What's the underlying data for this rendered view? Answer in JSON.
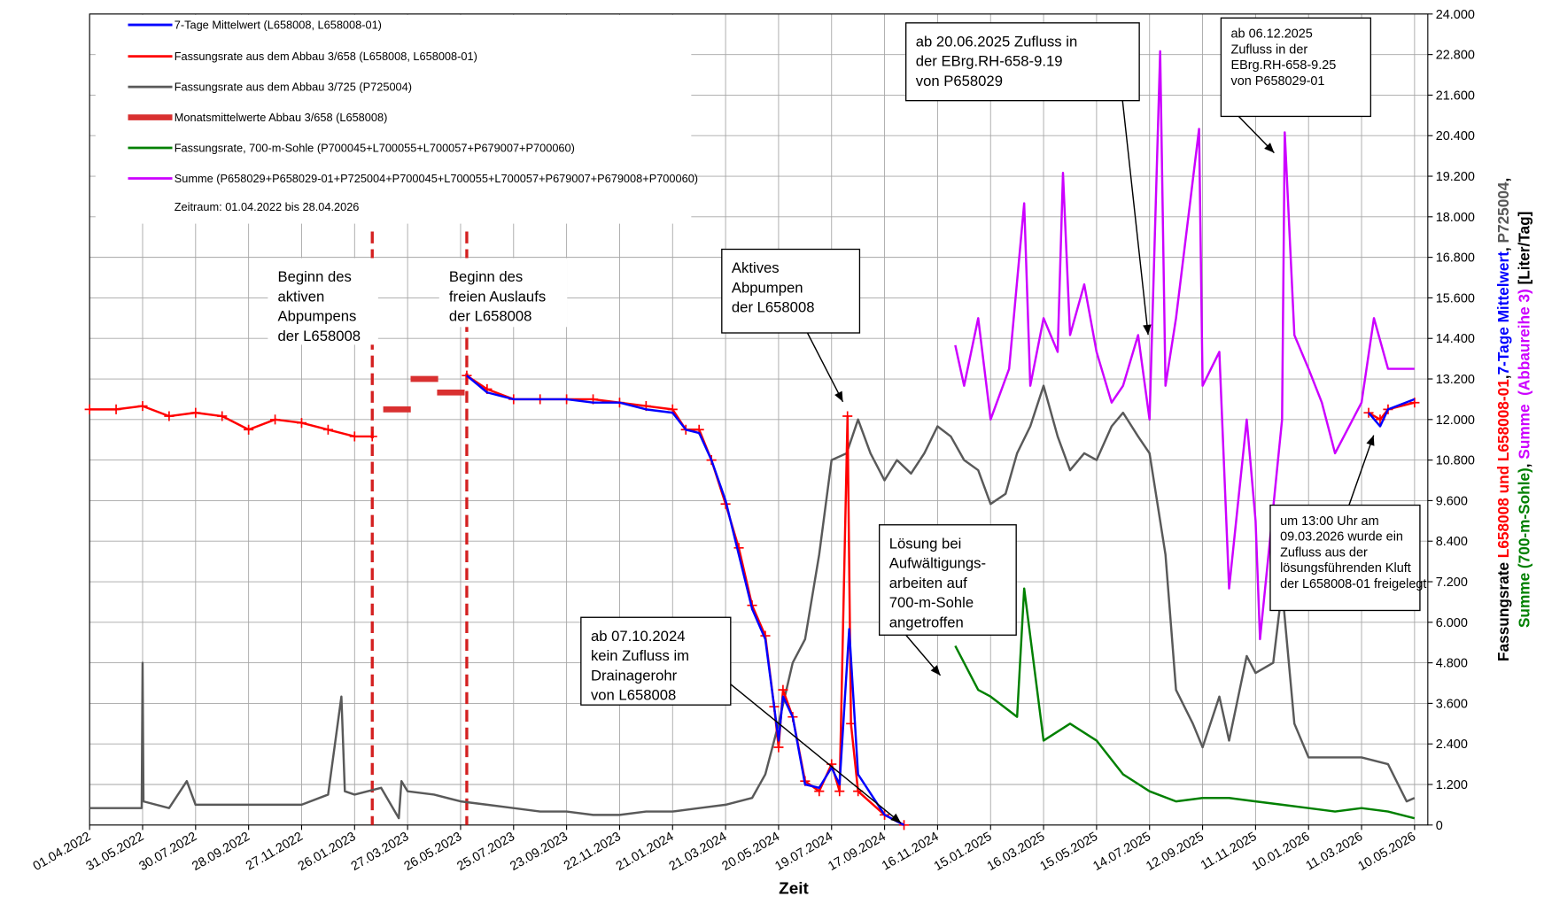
{
  "chart_data": {
    "type": "line",
    "x_label": "Zeit",
    "y_label_lines": [
      [
        {
          "text": "Fassungsrate ",
          "color": "#000000"
        },
        {
          "text": "L658008 und L658008-01",
          "color": "#ff0000"
        },
        {
          "text": ",",
          "color": "#000000"
        },
        {
          "text": "7-Tage Mittelwert",
          "color": "#0000ff"
        },
        {
          "text": ", ",
          "color": "#000000"
        },
        {
          "text": "P725004",
          "color": "#595959"
        },
        {
          "text": ",",
          "color": "#000000"
        }
      ],
      [
        {
          "text": "Summe (700-m-Sohle)",
          "color": "#008000"
        },
        {
          "text": ", ",
          "color": "#000000"
        },
        {
          "text": "Summe  (Abbaureihe 3)",
          "color": "#cc00ff"
        },
        {
          "text": " [Liter/Tag]",
          "color": "#000000"
        }
      ]
    ],
    "xlim": [
      "01.04.2022",
      "25.05.2026"
    ],
    "xticks": [
      "01.04.2022",
      "31.05.2022",
      "30.07.2022",
      "28.09.2022",
      "27.11.2022",
      "26.01.2023",
      "27.03.2023",
      "26.05.2023",
      "25.07.2023",
      "23.09.2023",
      "22.11.2023",
      "21.01.2024",
      "21.03.2024",
      "20.05.2024",
      "19.07.2024",
      "17.09.2024",
      "16.11.2024",
      "15.01.2025",
      "16.03.2025",
      "15.05.2025",
      "14.07.2025",
      "12.09.2025",
      "11.11.2025",
      "10.01.2026",
      "11.03.2026",
      "10.05.2026"
    ],
    "ylim": [
      0,
      24000
    ],
    "yticks": [
      0,
      {
        "value": 1200,
        "label": "1.200"
      },
      {
        "value": 2400,
        "label": "2.400"
      },
      {
        "value": 3600,
        "label": "3.600"
      },
      {
        "value": 4800,
        "label": "4.800"
      },
      {
        "value": 6000,
        "label": "6.000"
      },
      {
        "value": 7200,
        "label": "7.200"
      },
      {
        "value": 8400,
        "label": "8.400"
      },
      {
        "value": 9600,
        "label": "9.600"
      },
      {
        "value": 10800,
        "label": "10.800"
      },
      {
        "value": 12000,
        "label": "12.000"
      },
      {
        "value": 13200,
        "label": "13.200"
      },
      {
        "value": 14400,
        "label": "14.400"
      },
      {
        "value": 15600,
        "label": "15.600"
      },
      {
        "value": 16800,
        "label": "16.800"
      },
      {
        "value": 18000,
        "label": "18.000"
      },
      {
        "value": 19200,
        "label": "19.200"
      },
      {
        "value": 20400,
        "label": "20.400"
      },
      {
        "value": 21600,
        "label": "21.600"
      },
      {
        "value": 22800,
        "label": "22.800"
      },
      {
        "value": 24000,
        "label": "24.000"
      }
    ],
    "y_axis_side": "right",
    "grid": true,
    "legend_position": "upper-left",
    "legend_note": "Zeitraum: 01.04.2022 bis  28.04.2026",
    "vlines": {
      "color": "#d42020",
      "x": [
        "15.02.2023",
        "02.06.2023"
      ]
    },
    "series": [
      {
        "name": "7-Tage Mittelwert (L658008, L658008-01)",
        "color": "#0000ff",
        "x": [
          "02.06.2023",
          "25.06.2023",
          "25.07.2023",
          "24.08.2023",
          "23.09.2023",
          "23.10.2023",
          "22.11.2023",
          "22.12.2023",
          "21.01.2024",
          "05.02.2024",
          "20.02.2024",
          "05.03.2024",
          "21.03.2024",
          "05.04.2024",
          "20.04.2024",
          "05.05.2024",
          "20.05.2024",
          "25.05.2024",
          "05.06.2024",
          "19.06.2024",
          "05.07.2024",
          "19.07.2024",
          "28.07.2024",
          "08.08.2024",
          "18.08.2024",
          "17.09.2024",
          "09.10.2024",
          "16.11.2024",
          "19.03.2026",
          "01.04.2026",
          "10.04.2026",
          "10.05.2026"
        ],
        "values": [
          13300,
          12800,
          12600,
          12600,
          12600,
          12500,
          12500,
          12300,
          12200,
          11700,
          11600,
          10800,
          9600,
          8000,
          6400,
          5500,
          2500,
          3800,
          3200,
          1200,
          1100,
          1700,
          1200,
          5800,
          1500,
          300,
          0,
          null,
          12200,
          11800,
          12300,
          12600
        ]
      },
      {
        "name": "Fassungsrate aus dem Abbau 3/658 (L658008, L658008-01)",
        "color": "#ff0000",
        "marker": "plus",
        "x": [
          "01.04.2022",
          "01.05.2022",
          "31.05.2022",
          "30.06.2022",
          "30.07.2022",
          "29.08.2022",
          "28.09.2022",
          "28.10.2022",
          "27.11.2022",
          "27.12.2022",
          "26.01.2023",
          "15.02.2023",
          "25.02.2023",
          "02.06.2023",
          "25.06.2023",
          "25.07.2023",
          "24.08.2023",
          "23.09.2023",
          "23.10.2023",
          "22.11.2023",
          "22.12.2023",
          "21.01.2024",
          "05.02.2024",
          "20.02.2024",
          "05.03.2024",
          "21.03.2024",
          "05.04.2024",
          "20.04.2024",
          "05.05.2024",
          "15.05.2024",
          "20.05.2024",
          "25.05.2024",
          "05.06.2024",
          "19.06.2024",
          "05.07.2024",
          "19.07.2024",
          "28.07.2024",
          "06.08.2024",
          "10.08.2024",
          "18.08.2024",
          "17.09.2024",
          "09.10.2024",
          "16.11.2024",
          "19.03.2026",
          "01.04.2026",
          "10.04.2026",
          "10.05.2026"
        ],
        "values": [
          12300,
          12300,
          12400,
          12100,
          12200,
          12100,
          11700,
          12000,
          11900,
          11700,
          11500,
          11500,
          null,
          13300,
          12900,
          12600,
          12600,
          12600,
          12600,
          12500,
          12400,
          12300,
          11700,
          11700,
          10800,
          9500,
          8200,
          6500,
          5600,
          3500,
          2300,
          4000,
          3200,
          1300,
          1000,
          1800,
          1000,
          12100,
          3000,
          1000,
          300,
          0,
          null,
          12200,
          12000,
          12300,
          12500
        ]
      },
      {
        "name": "Fassungsrate aus dem Abbau 3/725 (P725004)",
        "color": "#595959",
        "x": [
          "01.04.2022",
          "30.05.2022",
          "31.05.2022",
          "01.06.2022",
          "30.06.2022",
          "20.07.2022",
          "30.07.2022",
          "28.09.2022",
          "27.11.2022",
          "27.12.2022",
          "11.01.2023",
          "15.01.2023",
          "26.01.2023",
          "25.02.2023",
          "17.03.2023",
          "20.03.2023",
          "27.03.2023",
          "26.04.2023",
          "26.05.2023",
          "25.06.2023",
          "25.07.2023",
          "24.08.2023",
          "23.09.2023",
          "23.10.2023",
          "22.11.2023",
          "22.12.2023",
          "21.01.2024",
          "20.02.2024",
          "21.03.2024",
          "20.04.2024",
          "05.05.2024",
          "20.05.2024",
          "05.06.2024",
          "19.06.2024",
          "05.07.2024",
          "19.07.2024",
          "05.08.2024",
          "18.08.2024",
          "01.09.2024",
          "17.09.2024",
          "01.10.2024",
          "17.10.2024",
          "01.11.2024",
          "16.11.2024",
          "01.12.2024",
          "16.12.2024",
          "01.01.2025",
          "15.01.2025",
          "01.02.2025",
          "14.02.2025",
          "01.03.2025",
          "16.03.2025",
          "01.04.2025",
          "15.04.2025",
          "01.05.2025",
          "15.05.2025",
          "01.06.2025",
          "14.06.2025",
          "01.07.2025",
          "14.07.2025",
          "01.08.2025",
          "13.08.2025",
          "01.09.2025",
          "12.09.2025",
          "01.10.2025",
          "12.10.2025",
          "01.11.2025",
          "11.11.2025",
          "01.12.2025",
          "11.12.2025",
          "25.12.2025",
          "10.01.2026",
          "09.02.2026",
          "11.03.2026",
          "10.04.2026",
          "01.05.2026",
          "10.05.2026"
        ],
        "values": [
          500,
          500,
          4800,
          700,
          500,
          1300,
          600,
          600,
          600,
          900,
          3800,
          1000,
          900,
          1100,
          200,
          1300,
          1000,
          900,
          700,
          600,
          500,
          400,
          400,
          300,
          300,
          400,
          400,
          500,
          600,
          800,
          1500,
          3000,
          4800,
          5500,
          8000,
          10800,
          11000,
          12000,
          11000,
          10200,
          10800,
          10400,
          11000,
          11800,
          11500,
          10800,
          10500,
          9500,
          9800,
          11000,
          11800,
          13000,
          11500,
          10500,
          11000,
          10800,
          11800,
          12200,
          11500,
          11000,
          8000,
          4000,
          3000,
          2300,
          3800,
          2500,
          5000,
          4500,
          4800,
          7000,
          3000,
          2000,
          2000,
          2000,
          1800,
          700,
          800
        ]
      },
      {
        "name": "Monatsmittelwerte Abbau 3/658 (L658008)",
        "color": "#d93030",
        "style": "month-bars",
        "x": [
          "15.03.2023",
          "15.04.2023",
          "15.05.2023"
        ],
        "values": [
          12300,
          13200,
          12800
        ]
      },
      {
        "name": "Fassungsrate, 700-m-Sohle (P700045+L700055+L700057+P679007+P700060)",
        "color": "#008000",
        "x": [
          "06.12.2024",
          "01.01.2025",
          "15.01.2025",
          "14.02.2025",
          "22.02.2025",
          "16.03.2025",
          "15.04.2025",
          "15.05.2025",
          "14.06.2025",
          "14.07.2025",
          "13.08.2025",
          "12.09.2025",
          "12.10.2025",
          "11.11.2025",
          "11.12.2025",
          "10.01.2026",
          "09.02.2026",
          "11.03.2026",
          "10.04.2026",
          "10.05.2026"
        ],
        "values": [
          5300,
          4000,
          3800,
          3200,
          7000,
          2500,
          3000,
          2500,
          1500,
          1000,
          700,
          800,
          800,
          700,
          600,
          500,
          400,
          500,
          400,
          200
        ]
      },
      {
        "name": "Summe (P658029+P658029-01+P725004+P700045+L700055+L700057+P679007+P679008+P700060)",
        "color": "#cc00ff",
        "x": [
          "06.12.2024",
          "16.12.2024",
          "01.01.2025",
          "15.01.2025",
          "05.02.2025",
          "22.02.2025",
          "01.03.2025",
          "16.03.2025",
          "01.04.2025",
          "07.04.2025",
          "15.04.2025",
          "01.05.2025",
          "15.05.2025",
          "01.06.2025",
          "14.06.2025",
          "01.07.2025",
          "14.07.2025",
          "26.07.2025",
          "01.08.2025",
          "13.08.2025",
          "08.09.2025",
          "12.09.2025",
          "01.10.2025",
          "12.10.2025",
          "01.11.2025",
          "11.11.2025",
          "16.11.2025",
          "11.12.2025",
          "14.12.2025",
          "25.12.2025",
          "10.01.2026",
          "25.01.2026",
          "09.02.2026",
          "11.03.2026",
          "25.03.2026",
          "10.04.2026",
          "10.05.2026"
        ],
        "values": [
          14200,
          13000,
          15000,
          12000,
          13500,
          18400,
          13000,
          15000,
          14000,
          19300,
          14500,
          16000,
          14000,
          12500,
          13000,
          14500,
          12000,
          22900,
          13000,
          15000,
          20600,
          13000,
          14000,
          7000,
          12000,
          9000,
          5500,
          12000,
          20500,
          14500,
          13500,
          12500,
          11000,
          12500,
          15000,
          13500,
          13500
        ]
      }
    ],
    "annotations": [
      {
        "lines": [
          "Beginn des",
          "aktiven",
          "Abpumpens",
          "der L658008"
        ]
      },
      {
        "lines": [
          "Beginn des",
          "freien Auslaufs",
          "der L658008"
        ]
      },
      {
        "lines": [
          "Aktives",
          "Abpumpen",
          "der L658008"
        ]
      },
      {
        "lines": [
          "ab 07.10.2024",
          "kein Zufluss im",
          "Drainagerohr",
          "von L658008"
        ]
      },
      {
        "lines": [
          "Lösung bei",
          "Aufwältigungs-",
          "arbeiten auf",
          "700-m-Sohle",
          "angetroffen"
        ]
      },
      {
        "lines": [
          "ab 20.06.2025 Zufluss in",
          "der EBrg.RH-658-9.19",
          "von P658029"
        ]
      },
      {
        "lines": [
          "ab 06.12.2025",
          "Zufluss in der",
          "EBrg.RH-658-9.25",
          "von P658029-01"
        ]
      },
      {
        "lines": [
          "um 13:00 Uhr am",
          "09.03.2026  wurde ein",
          "Zufluss aus der",
          "lösungsführenden Kluft",
          "der L658008-01 freigelegt"
        ]
      }
    ]
  }
}
